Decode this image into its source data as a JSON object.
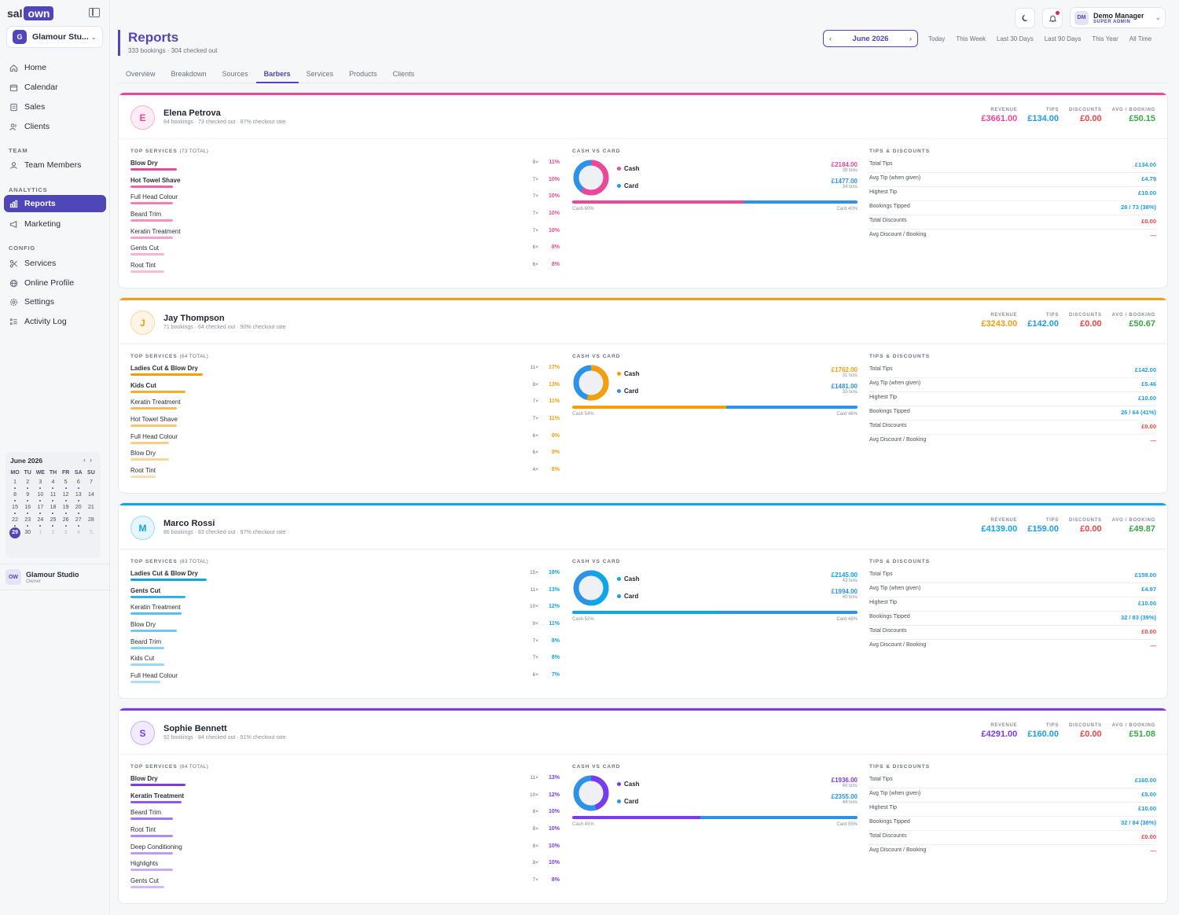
{
  "brand": {
    "logo_a": "sal",
    "logo_b": "own"
  },
  "studio_selector": {
    "badge": "G",
    "name": "Glamour Stu..."
  },
  "nav": {
    "home": "Home",
    "calendar": "Calendar",
    "sales": "Sales",
    "clients": "Clients",
    "team_section": "TEAM",
    "team_members": "Team Members",
    "analytics_section": "ANALYTICS",
    "reports": "Reports",
    "marketing": "Marketing",
    "config_section": "CONFIG",
    "services": "Services",
    "online_profile": "Online Profile",
    "settings": "Settings",
    "activity_log": "Activity Log"
  },
  "mini_calendar": {
    "title": "June 2026",
    "weekdays": [
      "MO",
      "TU",
      "WE",
      "TH",
      "FR",
      "SA",
      "SU"
    ],
    "days": [
      {
        "d": "1",
        "dot": true
      },
      {
        "d": "2",
        "dot": true
      },
      {
        "d": "3",
        "dot": true
      },
      {
        "d": "4",
        "dot": true
      },
      {
        "d": "5",
        "dot": true
      },
      {
        "d": "6",
        "dot": true
      },
      {
        "d": "7",
        "dot": false
      },
      {
        "d": "8",
        "dot": true
      },
      {
        "d": "9",
        "dot": true
      },
      {
        "d": "10",
        "dot": true
      },
      {
        "d": "11",
        "dot": true
      },
      {
        "d": "12",
        "dot": true
      },
      {
        "d": "13",
        "dot": true
      },
      {
        "d": "14",
        "dot": false
      },
      {
        "d": "15",
        "dot": true
      },
      {
        "d": "16",
        "dot": true
      },
      {
        "d": "17",
        "dot": true
      },
      {
        "d": "18",
        "dot": true
      },
      {
        "d": "19",
        "dot": true
      },
      {
        "d": "20",
        "dot": true
      },
      {
        "d": "21",
        "dot": false
      },
      {
        "d": "22",
        "dot": true
      },
      {
        "d": "23",
        "dot": true
      },
      {
        "d": "24",
        "dot": true
      },
      {
        "d": "25",
        "dot": true
      },
      {
        "d": "26",
        "dot": true
      },
      {
        "d": "27",
        "dot": true
      },
      {
        "d": "28",
        "dot": false
      },
      {
        "d": "29",
        "dot": false,
        "today": true
      },
      {
        "d": "30",
        "dot": false
      },
      {
        "d": "1",
        "muted": true
      },
      {
        "d": "2",
        "muted": true
      },
      {
        "d": "3",
        "muted": true
      },
      {
        "d": "4",
        "muted": true
      },
      {
        "d": "5",
        "muted": true
      }
    ]
  },
  "sidebar_footer": {
    "avatar": "OW",
    "name": "Glamour Studio",
    "role": "Owner"
  },
  "user": {
    "avatar": "DM",
    "name": "Demo Manager",
    "role": "SUPER ADMIN"
  },
  "page": {
    "title": "Reports",
    "subtitle": "333 bookings · 304 checked out"
  },
  "date_nav": {
    "month": "June 2026",
    "prev": "‹",
    "next": "›"
  },
  "ranges": [
    "Today",
    "This Week",
    "Last 30 Days",
    "Last 90 Days",
    "This Year",
    "All Time"
  ],
  "tabs": [
    "Overview",
    "Breakdown",
    "Sources",
    "Barbers",
    "Services",
    "Products",
    "Clients"
  ],
  "active_tab": "Barbers",
  "labels": {
    "revenue": "REVENUE",
    "tips": "TIPS",
    "discounts": "DISCOUNTS",
    "avg_booking": "AVG / BOOKING",
    "top_services": "TOP SERVICES",
    "cash_vs_card": "CASH VS CARD",
    "tips_discounts": "TIPS & DISCOUNTS",
    "cash": "Cash",
    "card": "Card",
    "total_tips": "Total Tips",
    "avg_tip": "Avg Tip (when given)",
    "highest_tip": "Highest Tip",
    "bookings_tipped": "Bookings Tipped",
    "total_discounts": "Total Discounts",
    "avg_discount": "Avg Discount / Booking"
  },
  "colors": {
    "brand": "#4f46b8",
    "tips_blue": "#1e9be9",
    "discount_red": "#ef4444",
    "avg_green": "#3aa845",
    "card_blue": "#2d93e8"
  },
  "barbers": [
    {
      "initial": "E",
      "name": "Elena Petrova",
      "sub": "84 bookings · 73 checked out · 87% checkout rate",
      "color": "#ec4899",
      "revenue": "£3661.00",
      "tips": "£134.00",
      "discounts": "£0.00",
      "avg": "£50.15",
      "services_total": "(73 TOTAL)",
      "services": [
        {
          "name": "Blow Dry",
          "count": "8×",
          "pct": "11%",
          "frac": 0.11,
          "top": true
        },
        {
          "name": "Hot Towel Shave",
          "count": "7×",
          "pct": "10%",
          "frac": 0.1,
          "top": true
        },
        {
          "name": "Full Head Colour",
          "count": "7×",
          "pct": "10%",
          "frac": 0.1
        },
        {
          "name": "Beard Trim",
          "count": "7×",
          "pct": "10%",
          "frac": 0.1
        },
        {
          "name": "Keratin Treatment",
          "count": "7×",
          "pct": "10%",
          "frac": 0.1
        },
        {
          "name": "Gents Cut",
          "count": "6×",
          "pct": "8%",
          "frac": 0.08
        },
        {
          "name": "Root Tint",
          "count": "6×",
          "pct": "8%",
          "frac": 0.08
        }
      ],
      "cash_amt": "£2184.00",
      "cash_txns": "39 txns",
      "card_amt": "£1477.00",
      "card_txns": "34 txns",
      "cash_frac": 0.6,
      "cash_label": "Cash 60%",
      "card_label": "Card 40%",
      "total_tips": "£134.00",
      "avg_tip": "£4.79",
      "highest_tip": "£10.00",
      "tipped": "28 / 73 (38%)",
      "total_discounts": "£0.00",
      "avg_discount": "—"
    },
    {
      "initial": "J",
      "name": "Jay Thompson",
      "sub": "71 bookings · 64 checked out · 90% checkout rate",
      "color": "#f59e0b",
      "revenue": "£3243.00",
      "tips": "£142.00",
      "discounts": "£0.00",
      "avg": "£50.67",
      "services_total": "(64 TOTAL)",
      "services": [
        {
          "name": "Ladies Cut & Blow Dry",
          "count": "11×",
          "pct": "17%",
          "frac": 0.17,
          "top": true
        },
        {
          "name": "Kids Cut",
          "count": "8×",
          "pct": "13%",
          "frac": 0.13,
          "top": true
        },
        {
          "name": "Keratin Treatment",
          "count": "7×",
          "pct": "11%",
          "frac": 0.11
        },
        {
          "name": "Hot Towel Shave",
          "count": "7×",
          "pct": "11%",
          "frac": 0.11
        },
        {
          "name": "Full Head Colour",
          "count": "6×",
          "pct": "9%",
          "frac": 0.09
        },
        {
          "name": "Blow Dry",
          "count": "6×",
          "pct": "9%",
          "frac": 0.09
        },
        {
          "name": "Root Tint",
          "count": "4×",
          "pct": "6%",
          "frac": 0.06
        }
      ],
      "cash_amt": "£1762.00",
      "cash_txns": "31 txns",
      "card_amt": "£1481.00",
      "card_txns": "33 txns",
      "cash_frac": 0.54,
      "cash_label": "Cash 54%",
      "card_label": "Card 46%",
      "total_tips": "£142.00",
      "avg_tip": "£5.46",
      "highest_tip": "£10.00",
      "tipped": "26 / 64 (41%)",
      "total_discounts": "£0.00",
      "avg_discount": "—"
    },
    {
      "initial": "M",
      "name": "Marco Rossi",
      "sub": "86 bookings · 83 checked out · 97% checkout rate",
      "color": "#0ea5e9",
      "revenue": "£4139.00",
      "tips": "£159.00",
      "discounts": "£0.00",
      "avg": "£49.87",
      "services_total": "(83 TOTAL)",
      "services": [
        {
          "name": "Ladies Cut & Blow Dry",
          "count": "15×",
          "pct": "18%",
          "frac": 0.18,
          "top": true
        },
        {
          "name": "Gents Cut",
          "count": "11×",
          "pct": "13%",
          "frac": 0.13,
          "top": true
        },
        {
          "name": "Keratin Treatment",
          "count": "10×",
          "pct": "12%",
          "frac": 0.12
        },
        {
          "name": "Blow Dry",
          "count": "9×",
          "pct": "11%",
          "frac": 0.11
        },
        {
          "name": "Beard Trim",
          "count": "7×",
          "pct": "8%",
          "frac": 0.08
        },
        {
          "name": "Kids Cut",
          "count": "7×",
          "pct": "8%",
          "frac": 0.08
        },
        {
          "name": "Full Head Colour",
          "count": "6×",
          "pct": "7%",
          "frac": 0.07
        }
      ],
      "cash_amt": "£2145.00",
      "cash_txns": "43 txns",
      "card_amt": "£1994.00",
      "card_txns": "40 txns",
      "cash_frac": 0.52,
      "cash_label": "Cash 52%",
      "card_label": "Card 48%",
      "total_tips": "£159.00",
      "avg_tip": "£4.97",
      "highest_tip": "£10.00",
      "tipped": "32 / 83 (39%)",
      "total_discounts": "£0.00",
      "avg_discount": "—"
    },
    {
      "initial": "S",
      "name": "Sophie Bennett",
      "sub": "92 bookings · 84 checked out · 91% checkout rate",
      "color": "#7c3aed",
      "revenue": "£4291.00",
      "tips": "£160.00",
      "discounts": "£0.00",
      "avg": "£51.08",
      "services_total": "(84 TOTAL)",
      "services": [
        {
          "name": "Blow Dry",
          "count": "11×",
          "pct": "13%",
          "frac": 0.13,
          "top": true
        },
        {
          "name": "Keratin Treatment",
          "count": "10×",
          "pct": "12%",
          "frac": 0.12,
          "top": true
        },
        {
          "name": "Beard Trim",
          "count": "8×",
          "pct": "10%",
          "frac": 0.1
        },
        {
          "name": "Root Tint",
          "count": "8×",
          "pct": "10%",
          "frac": 0.1
        },
        {
          "name": "Deep Conditioning",
          "count": "8×",
          "pct": "10%",
          "frac": 0.1
        },
        {
          "name": "Highlights",
          "count": "8×",
          "pct": "10%",
          "frac": 0.1
        },
        {
          "name": "Gents Cut",
          "count": "7×",
          "pct": "8%",
          "frac": 0.08
        }
      ],
      "cash_amt": "£1936.00",
      "cash_txns": "40 txns",
      "card_amt": "£2355.00",
      "card_txns": "44 txns",
      "cash_frac": 0.45,
      "cash_label": "Cash 45%",
      "card_label": "Card 55%",
      "total_tips": "£160.00",
      "avg_tip": "£5.00",
      "highest_tip": "£10.00",
      "tipped": "32 / 84 (38%)",
      "total_discounts": "£0.00",
      "avg_discount": "—"
    }
  ]
}
